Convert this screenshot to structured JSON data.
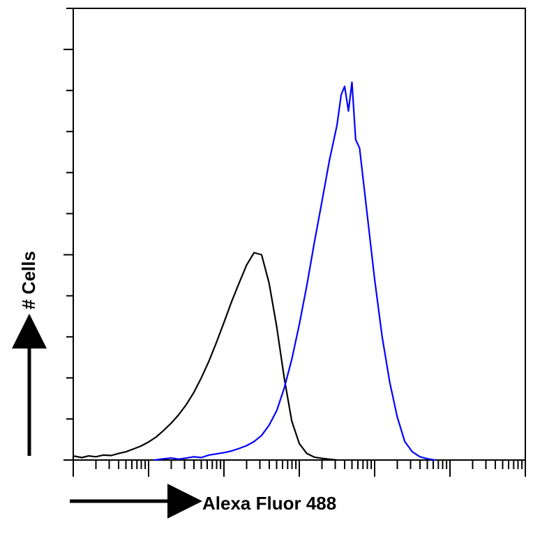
{
  "chart_data": {
    "type": "line",
    "title": "",
    "xlabel": "Alexa Fluor 488",
    "ylabel": "# Cells",
    "x_scale": "log",
    "xlim": [
      1,
      1000000
    ],
    "ylim": [
      0,
      11
    ],
    "y_major_ticks": [
      0,
      5,
      10
    ],
    "tick_labels_shown": false,
    "grid": false,
    "legend": "none",
    "series": [
      {
        "color": "#000000",
        "points": [
          [
            1.0,
            0.1
          ],
          [
            1.3,
            0.06
          ],
          [
            1.6,
            0.1
          ],
          [
            2.0,
            0.08
          ],
          [
            2.5,
            0.12
          ],
          [
            3.2,
            0.11
          ],
          [
            4.0,
            0.16
          ],
          [
            5.0,
            0.2
          ],
          [
            6.3,
            0.27
          ],
          [
            7.9,
            0.34
          ],
          [
            10,
            0.44
          ],
          [
            12.6,
            0.56
          ],
          [
            15.8,
            0.72
          ],
          [
            20,
            0.9
          ],
          [
            25,
            1.1
          ],
          [
            31.6,
            1.35
          ],
          [
            40,
            1.65
          ],
          [
            50,
            2.0
          ],
          [
            63,
            2.4
          ],
          [
            79,
            2.85
          ],
          [
            100,
            3.35
          ],
          [
            126,
            3.85
          ],
          [
            158,
            4.3
          ],
          [
            200,
            4.75
          ],
          [
            251,
            5.05
          ],
          [
            316,
            5.0
          ],
          [
            398,
            4.3
          ],
          [
            501,
            3.25
          ],
          [
            631,
            2.0
          ],
          [
            794,
            0.95
          ],
          [
            1000,
            0.4
          ],
          [
            1259,
            0.16
          ],
          [
            1585,
            0.07
          ],
          [
            2000,
            0.04
          ],
          [
            2512,
            0.02
          ],
          [
            3162,
            0.0
          ]
        ]
      },
      {
        "color": "#0000ff",
        "points": [
          [
            12,
            0.0
          ],
          [
            16,
            0.03
          ],
          [
            20,
            0.05
          ],
          [
            25,
            0.02
          ],
          [
            32,
            0.05
          ],
          [
            40,
            0.08
          ],
          [
            50,
            0.06
          ],
          [
            63,
            0.12
          ],
          [
            79,
            0.15
          ],
          [
            100,
            0.18
          ],
          [
            126,
            0.22
          ],
          [
            158,
            0.28
          ],
          [
            200,
            0.35
          ],
          [
            251,
            0.45
          ],
          [
            316,
            0.6
          ],
          [
            398,
            0.85
          ],
          [
            501,
            1.2
          ],
          [
            631,
            1.75
          ],
          [
            794,
            2.45
          ],
          [
            1000,
            3.3
          ],
          [
            1259,
            4.25
          ],
          [
            1585,
            5.3
          ],
          [
            2000,
            6.3
          ],
          [
            2512,
            7.3
          ],
          [
            3162,
            8.15
          ],
          [
            3600,
            8.9
          ],
          [
            4000,
            9.1
          ],
          [
            4500,
            8.5
          ],
          [
            5000,
            9.2
          ],
          [
            5600,
            7.8
          ],
          [
            6310,
            7.6
          ],
          [
            7943,
            6.0
          ],
          [
            10000,
            4.4
          ],
          [
            12589,
            3.0
          ],
          [
            15849,
            1.9
          ],
          [
            19953,
            1.05
          ],
          [
            25119,
            0.45
          ],
          [
            31623,
            0.2
          ],
          [
            39811,
            0.08
          ],
          [
            50119,
            0.03
          ],
          [
            63096,
            0.0
          ]
        ]
      }
    ]
  }
}
